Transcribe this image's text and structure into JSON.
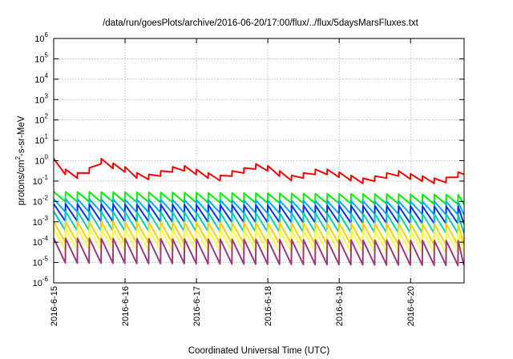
{
  "chart_data": {
    "type": "line",
    "title": "/data/run/goesPlots/archive/2016-06-20/17:00/flux/../flux/5daysMarsFluxes.txt",
    "xlabel": "Coordinated Universal Time (UTC)",
    "ylabel_main": "protons/cm",
    "ylabel_sup": "2",
    "ylabel_rest": "-s-sr-MeV",
    "yscale": "log",
    "ylim": [
      1e-06,
      1000000.0
    ],
    "xlim": [
      "2016-06-15T00:00",
      "2016-06-20T18:00"
    ],
    "grid": true,
    "ytick_labels": [
      {
        "exp": "-6",
        "value": 1e-06
      },
      {
        "exp": "-5",
        "value": 1e-05
      },
      {
        "exp": "-4",
        "value": 0.0001
      },
      {
        "exp": "-3",
        "value": 0.001
      },
      {
        "exp": "-2",
        "value": 0.01
      },
      {
        "exp": "-1",
        "value": 0.1
      },
      {
        "exp": "0",
        "value": 1
      },
      {
        "exp": "1",
        "value": 10.0
      },
      {
        "exp": "2",
        "value": 100.0
      },
      {
        "exp": "3",
        "value": 1000.0
      },
      {
        "exp": "4",
        "value": 10000.0
      },
      {
        "exp": "5",
        "value": 100000.0
      },
      {
        "exp": "6",
        "value": 1000000.0
      }
    ],
    "ytick_base": "10",
    "xtick_labels": [
      "2016-6-15",
      "2016-6-16",
      "2016-6-17",
      "2016-6-18",
      "2016-6-19",
      "2016-6-20"
    ],
    "sawtooth_period_hours": 4,
    "series": [
      {
        "color": "#ff0000",
        "pattern": "sawtooth",
        "points": [
          [
            "2016-06-15T00:00",
            1.0
          ],
          [
            "2016-06-15T04:00",
            0.3
          ],
          [
            "2016-06-15T08:00",
            0.2
          ],
          [
            "2016-06-15T12:00",
            0.35
          ],
          [
            "2016-06-15T16:00",
            1.0
          ],
          [
            "2016-06-15T20:00",
            0.6
          ],
          [
            "2016-06-16T00:00",
            0.4
          ],
          [
            "2016-06-16T04:00",
            0.2
          ],
          [
            "2016-06-16T08:00",
            0.17
          ],
          [
            "2016-06-16T12:00",
            0.25
          ],
          [
            "2016-06-16T16:00",
            0.4
          ],
          [
            "2016-06-16T20:00",
            0.45
          ],
          [
            "2016-06-17T00:00",
            0.3
          ],
          [
            "2016-06-17T04:00",
            0.2
          ],
          [
            "2016-06-17T08:00",
            0.15
          ],
          [
            "2016-06-17T12:00",
            0.25
          ],
          [
            "2016-06-17T16:00",
            0.35
          ],
          [
            "2016-06-17T20:00",
            0.55
          ],
          [
            "2016-06-18T00:00",
            0.45
          ],
          [
            "2016-06-18T04:00",
            0.25
          ],
          [
            "2016-06-18T08:00",
            0.15
          ],
          [
            "2016-06-18T12:00",
            0.2
          ],
          [
            "2016-06-18T16:00",
            0.3
          ],
          [
            "2016-06-18T20:00",
            0.3
          ],
          [
            "2016-06-19T00:00",
            0.22
          ],
          [
            "2016-06-19T04:00",
            0.15
          ],
          [
            "2016-06-19T08:00",
            0.11
          ],
          [
            "2016-06-19T12:00",
            0.14
          ],
          [
            "2016-06-19T16:00",
            0.2
          ],
          [
            "2016-06-19T20:00",
            0.25
          ],
          [
            "2016-06-20T00:00",
            0.18
          ],
          [
            "2016-06-20T04:00",
            0.14
          ],
          [
            "2016-06-20T08:00",
            0.11
          ],
          [
            "2016-06-20T12:00",
            0.12
          ],
          [
            "2016-06-20T18:00",
            0.3
          ]
        ],
        "teeth_low": 0.7,
        "teeth_high": 1.25
      },
      {
        "color": "#00ee00",
        "pattern": "sawtooth",
        "points": [
          [
            "2016-06-15T00:00",
            0.022
          ],
          [
            "2016-06-20T18:00",
            0.016
          ]
        ],
        "teeth_low": 0.45,
        "teeth_high": 1.35
      },
      {
        "color": "#00aaff",
        "pattern": "sawtooth",
        "points": [
          [
            "2016-06-15T00:00",
            0.011
          ],
          [
            "2016-06-20T18:00",
            0.008
          ]
        ],
        "teeth_low": 0.28,
        "teeth_high": 1.2
      },
      {
        "color": "#0033ee",
        "pattern": "sawtooth",
        "points": [
          [
            "2016-06-15T00:00",
            0.006
          ],
          [
            "2016-06-20T18:00",
            0.0045
          ]
        ],
        "teeth_low": 0.18,
        "teeth_high": 1.25
      },
      {
        "color": "#00d0b0",
        "pattern": "sawtooth",
        "points": [
          [
            "2016-06-15T00:00",
            0.0025
          ],
          [
            "2016-06-20T18:00",
            0.0018
          ]
        ],
        "teeth_low": 0.15,
        "teeth_high": 1.3
      },
      {
        "color": "#ffd000",
        "pattern": "sawtooth",
        "points": [
          [
            "2016-06-15T00:00",
            0.0008
          ],
          [
            "2016-06-20T18:00",
            0.0006
          ]
        ],
        "teeth_low": 0.12,
        "teeth_high": 1.3
      },
      {
        "color": "#ffff40",
        "pattern": "sawtooth",
        "points": [
          [
            "2016-06-15T00:00",
            0.00035
          ],
          [
            "2016-06-20T18:00",
            0.00025
          ]
        ],
        "teeth_low": 0.12,
        "teeth_high": 1.35
      },
      {
        "color": "#9b3b7a",
        "pattern": "sawtooth",
        "points": [
          [
            "2016-06-15T00:00",
            0.00012
          ],
          [
            "2016-06-20T18:00",
            9e-05
          ]
        ],
        "teeth_low": 0.08,
        "teeth_high": 1.3
      }
    ]
  }
}
